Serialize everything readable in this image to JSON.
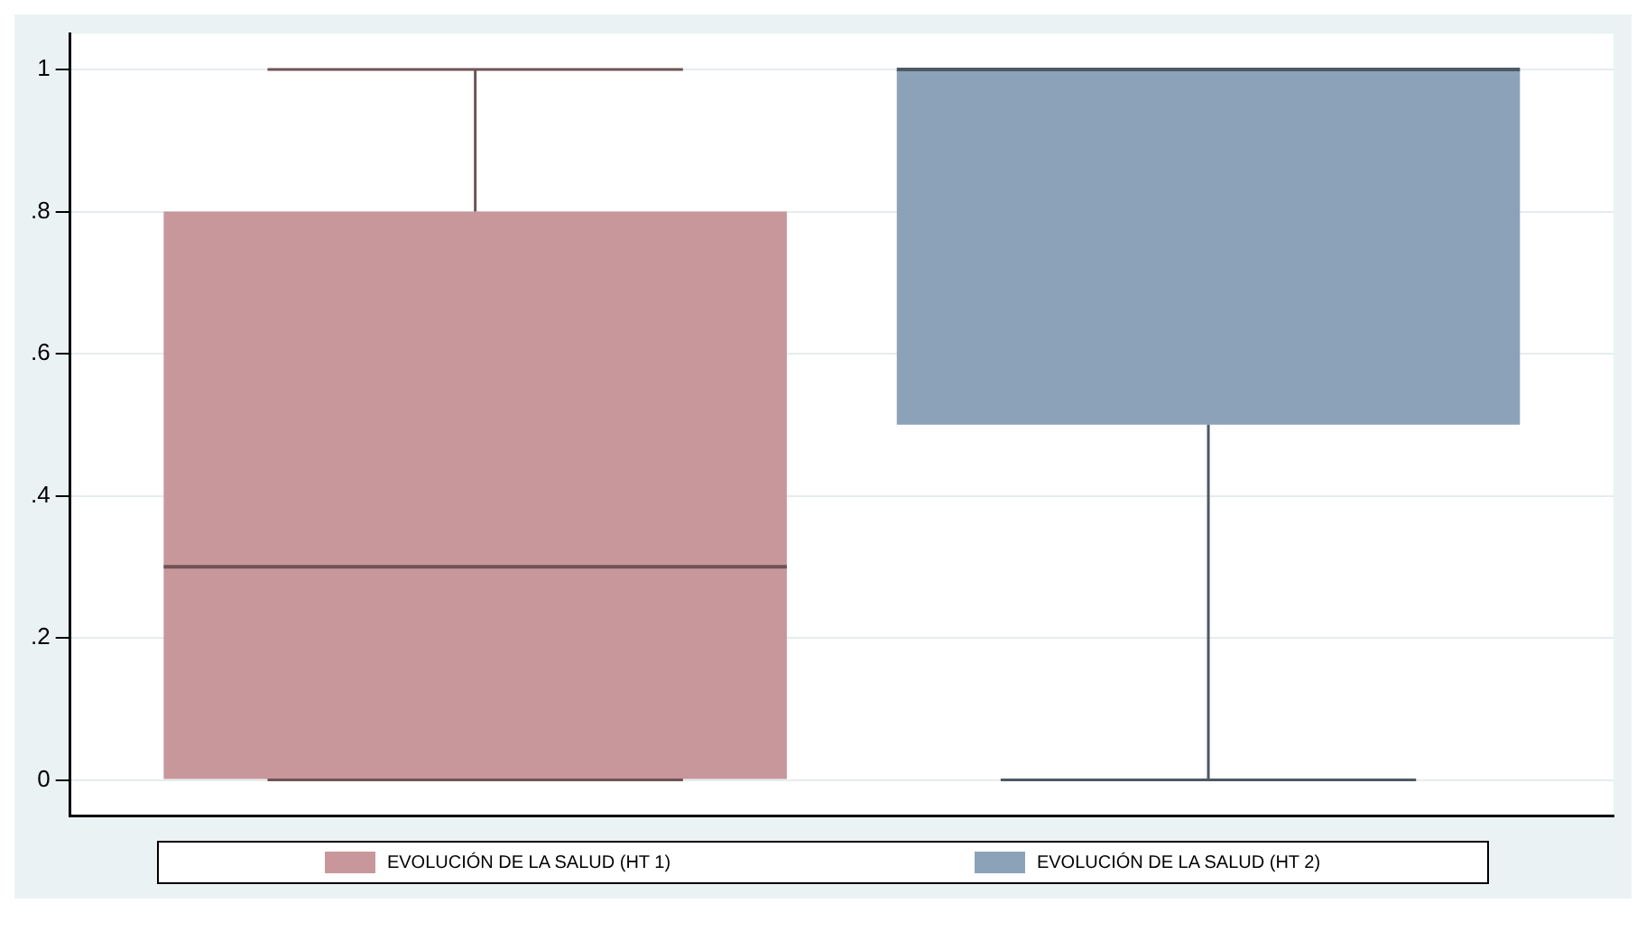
{
  "chart_data": {
    "type": "box",
    "categories": [
      null
    ],
    "series": [
      {
        "name": "EVOLUCIÓN DE LA SALUD  (HT 1)",
        "color": "#c8979b",
        "boxes": [
          {
            "low": 0,
            "q1": 0,
            "median": 0.3,
            "q3": 0.8,
            "high": 1
          }
        ]
      },
      {
        "name": "EVOLUCIÓN DE LA SALUD  (HT 2)",
        "color": "#8ca2b8",
        "boxes": [
          {
            "low": 0,
            "q1": 0.5,
            "median": 1,
            "q3": 1,
            "high": 1
          }
        ]
      }
    ],
    "ylim": [
      -0.05,
      1.05
    ],
    "yticks": [
      {
        "value": 0,
        "label": "0"
      },
      {
        "value": 0.2,
        "label": ".2"
      },
      {
        "value": 0.4,
        "label": ".4"
      },
      {
        "value": 0.6,
        "label": ".6"
      },
      {
        "value": 0.8,
        "label": ".8"
      },
      {
        "value": 1,
        "label": "1"
      }
    ],
    "grid": "y",
    "legend": "bottom"
  }
}
